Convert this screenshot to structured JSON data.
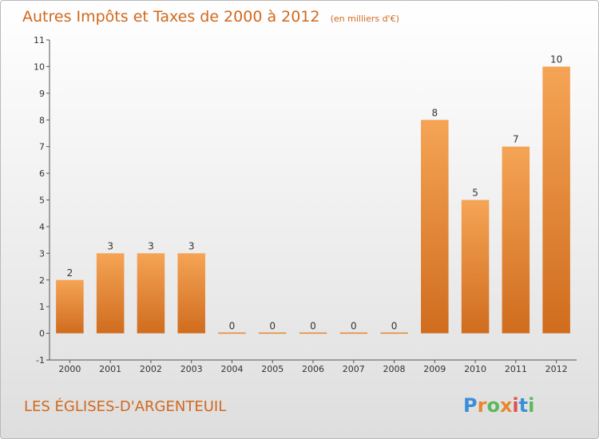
{
  "chart_data": {
    "type": "bar",
    "title": "Autres Impôts et Taxes de 2000 à 2012",
    "unit": "(en milliers d'€)",
    "categories": [
      "2000",
      "2001",
      "2002",
      "2003",
      "2004",
      "2005",
      "2006",
      "2007",
      "2008",
      "2009",
      "2010",
      "2011",
      "2012"
    ],
    "values": [
      2,
      3,
      3,
      3,
      0,
      0,
      0,
      0,
      0,
      8,
      5,
      7,
      10
    ],
    "y_ticks": [
      "-1",
      "0",
      "1",
      "2",
      "3",
      "4",
      "5",
      "6",
      "7",
      "8",
      "9",
      "10",
      "11"
    ],
    "ylim": [
      -1,
      11
    ],
    "xlabel": "",
    "ylabel": "",
    "grid": false,
    "bar_color": "#e8872f"
  },
  "footer": {
    "location": "LES ÉGLISES-D'ARGENTEUIL",
    "brand": "Proxiti"
  }
}
